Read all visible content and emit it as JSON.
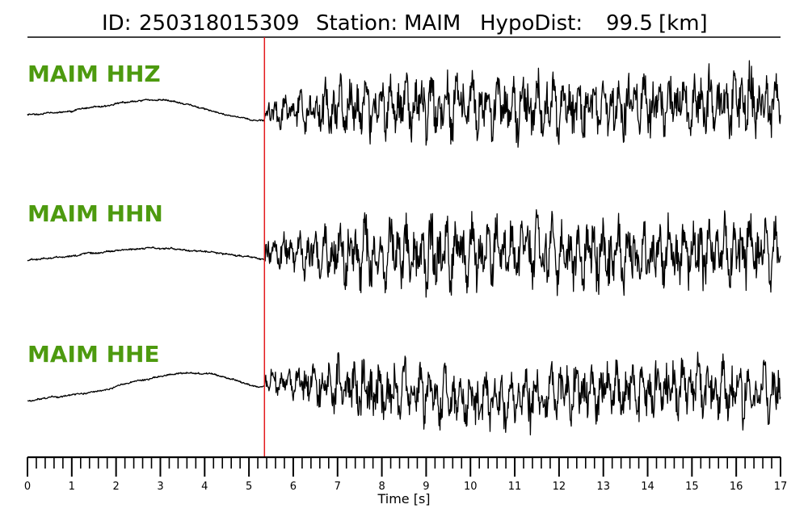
{
  "title": {
    "id_label": "ID:",
    "id_value": "250318015309",
    "station_label": "Station:",
    "station_value": "MAIM",
    "hypodist_label": "HypoDist:",
    "hypodist_value": "99.5",
    "hypodist_unit": "[km]"
  },
  "chart_data": {
    "type": "line",
    "xlabel": "Time [s]",
    "xlim": [
      0,
      17
    ],
    "x_ticks": [
      0,
      1,
      2,
      3,
      4,
      5,
      6,
      7,
      8,
      9,
      10,
      11,
      12,
      13,
      14,
      15,
      16,
      17
    ],
    "minor_tick_step": 0.2,
    "pick_marker": {
      "time": 5.35,
      "color": "#e31a1c"
    },
    "label_color": "#4d9a0f",
    "series": [
      {
        "name": "MAIM HHZ",
        "component": "Z"
      },
      {
        "name": "MAIM HHN",
        "component": "N"
      },
      {
        "name": "MAIM HHE",
        "component": "E"
      }
    ]
  }
}
